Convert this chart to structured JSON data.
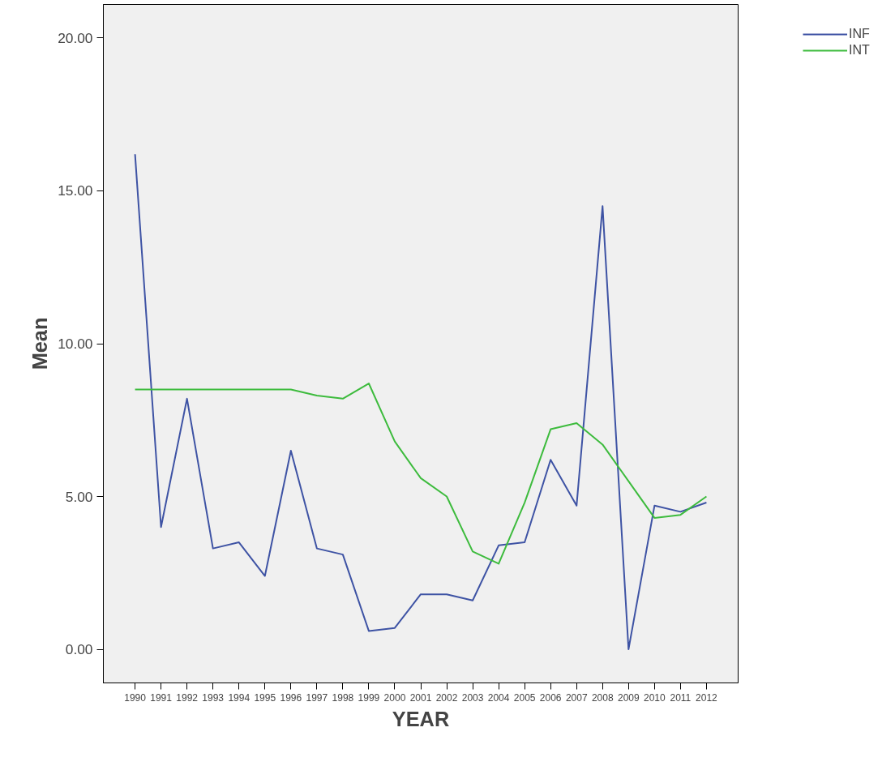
{
  "chart_data": {
    "type": "line",
    "xlabel": "YEAR",
    "ylabel": "Mean",
    "categories": [
      "1990",
      "1991",
      "1992",
      "1993",
      "1994",
      "1995",
      "1996",
      "1997",
      "1998",
      "1999",
      "2000",
      "2001",
      "2002",
      "2003",
      "2004",
      "2005",
      "2006",
      "2007",
      "2008",
      "2009",
      "2010",
      "2011",
      "2012"
    ],
    "series": [
      {
        "name": "INF",
        "color": "#3e53a4",
        "values": [
          16.2,
          4.0,
          8.2,
          3.3,
          3.5,
          2.4,
          6.5,
          3.3,
          3.1,
          0.6,
          0.7,
          1.8,
          1.8,
          1.6,
          3.4,
          3.5,
          6.2,
          4.7,
          14.5,
          0.0,
          4.7,
          4.5,
          4.8
        ]
      },
      {
        "name": "INT",
        "color": "#3dbb3d",
        "values": [
          8.5,
          8.5,
          8.5,
          8.5,
          8.5,
          8.5,
          8.5,
          8.3,
          8.2,
          8.7,
          6.8,
          5.6,
          5.0,
          3.2,
          2.8,
          4.8,
          7.2,
          7.4,
          6.7,
          5.5,
          4.3,
          4.4,
          5.0
        ]
      }
    ],
    "ylim": [
      -1.1,
      21.1
    ],
    "yticks": [
      {
        "value": 0,
        "label": "0.00"
      },
      {
        "value": 5,
        "label": "5.00"
      },
      {
        "value": 10,
        "label": "10.00"
      },
      {
        "value": 15,
        "label": "15.00"
      },
      {
        "value": 20,
        "label": "20.00"
      }
    ],
    "grid": false,
    "legend": "top right",
    "marker": "none",
    "line_style": "solid"
  }
}
